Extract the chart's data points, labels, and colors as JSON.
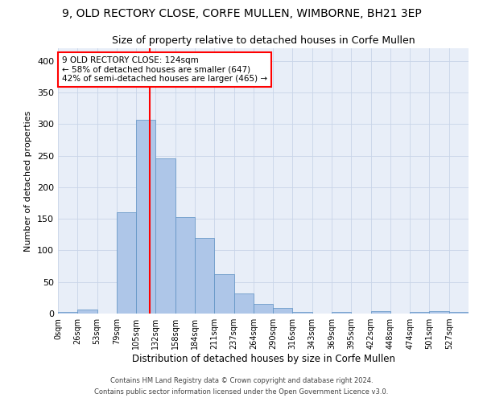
{
  "title_line1": "9, OLD RECTORY CLOSE, CORFE MULLEN, WIMBORNE, BH21 3EP",
  "title_line2": "Size of property relative to detached houses in Corfe Mullen",
  "xlabel": "Distribution of detached houses by size in Corfe Mullen",
  "ylabel": "Number of detached properties",
  "footnote1": "Contains HM Land Registry data © Crown copyright and database right 2024.",
  "footnote2": "Contains public sector information licensed under the Open Government Licence v3.0.",
  "bar_labels": [
    "0sqm",
    "26sqm",
    "53sqm",
    "79sqm",
    "105sqm",
    "132sqm",
    "158sqm",
    "184sqm",
    "211sqm",
    "237sqm",
    "264sqm",
    "290sqm",
    "316sqm",
    "343sqm",
    "369sqm",
    "395sqm",
    "422sqm",
    "448sqm",
    "474sqm",
    "501sqm",
    "527sqm"
  ],
  "bar_values": [
    2,
    6,
    0,
    160,
    307,
    245,
    153,
    120,
    62,
    32,
    15,
    9,
    2,
    0,
    3,
    0,
    4,
    0,
    3,
    4,
    2
  ],
  "bar_color": "#aec6e8",
  "bar_edge_color": "#5a8fc2",
  "ylim": [
    0,
    420
  ],
  "yticks": [
    0,
    50,
    100,
    150,
    200,
    250,
    300,
    350,
    400
  ],
  "vline_color": "red",
  "bg_color": "#e8eef8",
  "grid_color": "#c8d4e8",
  "annotation_label": "9 OLD RECTORY CLOSE: 124sqm",
  "annotation_line2": "← 58% of detached houses are smaller (647)",
  "annotation_line3": "42% of semi-detached houses are larger (465) →"
}
